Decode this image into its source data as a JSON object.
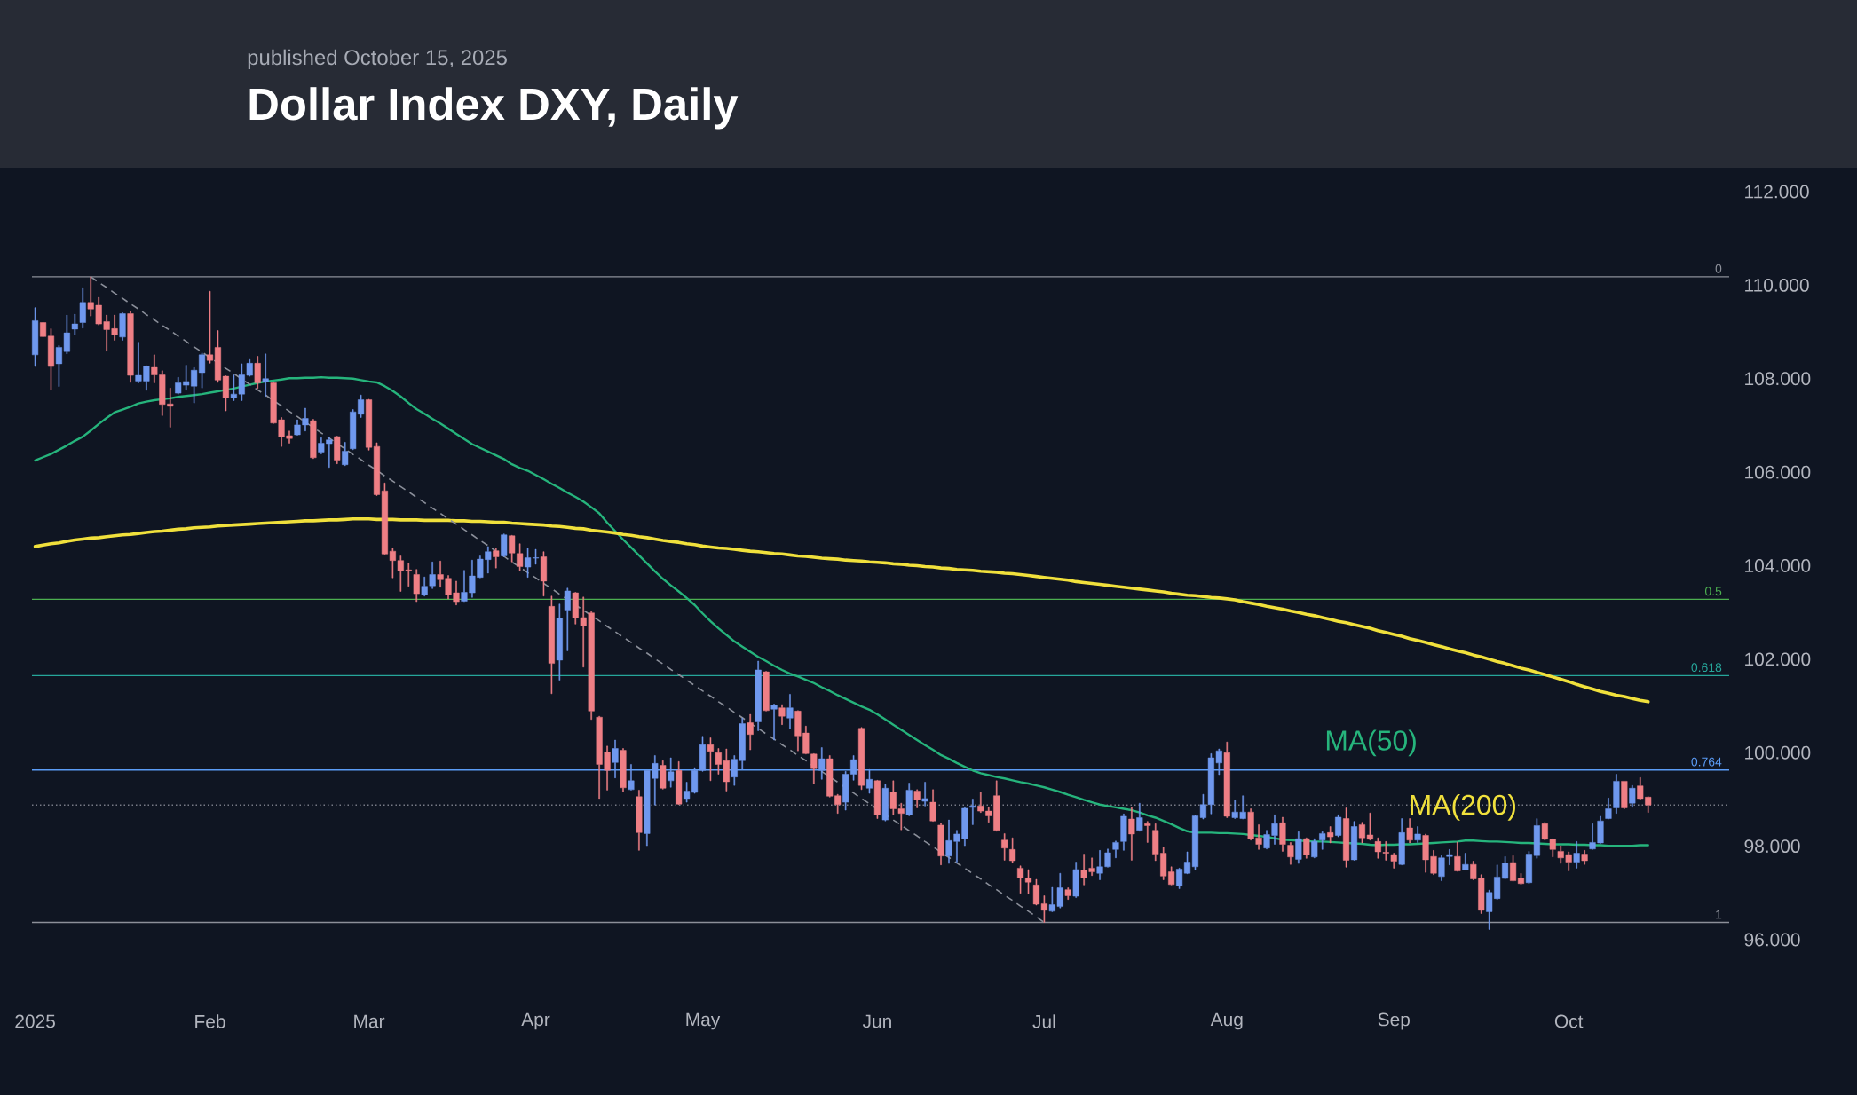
{
  "chart_data": {
    "type": "candlestick",
    "title": "Dollar Index DXY, Daily",
    "subtitle": "published October 15, 2025",
    "categories": [
      "2025",
      null,
      null,
      null,
      null,
      null,
      null,
      null,
      null,
      null,
      null,
      null,
      null,
      null,
      null,
      null,
      null,
      null,
      null,
      null,
      null,
      null,
      "Feb",
      null,
      null,
      null,
      null,
      null,
      null,
      null,
      null,
      null,
      null,
      null,
      null,
      null,
      null,
      null,
      null,
      null,
      null,
      null,
      "Mar",
      null,
      null,
      null,
      null,
      null,
      null,
      null,
      null,
      null,
      null,
      null,
      null,
      null,
      null,
      null,
      null,
      null,
      null,
      null,
      null,
      "Apr",
      null,
      null,
      null,
      null,
      null,
      null,
      null,
      null,
      null,
      null,
      null,
      null,
      null,
      null,
      null,
      null,
      null,
      null,
      null,
      null,
      "May",
      null,
      null,
      null,
      null,
      null,
      null,
      null,
      null,
      null,
      null,
      null,
      null,
      null,
      null,
      null,
      null,
      null,
      null,
      null,
      null,
      null,
      "Jun",
      null,
      null,
      null,
      null,
      null,
      null,
      null,
      null,
      null,
      null,
      null,
      null,
      null,
      null,
      null,
      null,
      null,
      null,
      null,
      null,
      "Jul",
      null,
      null,
      null,
      null,
      null,
      null,
      null,
      null,
      null,
      null,
      null,
      null,
      null,
      null,
      null,
      null,
      null,
      null,
      null,
      null,
      null,
      null,
      "Aug",
      null,
      null,
      null,
      null,
      null,
      null,
      null,
      null,
      null,
      null,
      null,
      null,
      null,
      null,
      null,
      null,
      null,
      null,
      null,
      null,
      "Sep",
      null,
      null,
      null,
      null,
      null,
      null,
      null,
      null,
      null,
      null,
      null,
      null,
      null,
      null,
      null,
      null,
      null,
      null,
      null,
      null,
      null,
      "Oct",
      null,
      null,
      null,
      null,
      null,
      null,
      null,
      null,
      null,
      null
    ],
    "ohlc": [
      [
        108.51,
        109.52,
        108.26,
        109.24
      ],
      [
        109.2,
        109.21,
        108.89,
        108.9
      ],
      [
        108.91,
        109.07,
        107.75,
        108.26
      ],
      [
        108.32,
        108.71,
        107.83,
        108.67
      ],
      [
        108.58,
        109.36,
        108.53,
        108.98
      ],
      [
        109.06,
        109.38,
        108.94,
        109.17
      ],
      [
        109.2,
        109.95,
        109.08,
        109.63
      ],
      [
        109.63,
        110.18,
        109.34,
        109.49
      ],
      [
        109.57,
        109.74,
        109.15,
        109.17
      ],
      [
        109.22,
        109.36,
        108.59,
        109.05
      ],
      [
        109.07,
        109.36,
        108.82,
        108.94
      ],
      [
        108.89,
        109.41,
        108.82,
        109.39
      ],
      [
        109.39,
        109.44,
        107.92,
        108.07
      ],
      [
        107.95,
        108.78,
        107.91,
        108.07
      ],
      [
        107.95,
        108.28,
        107.75,
        108.27
      ],
      [
        108.24,
        108.51,
        107.91,
        108.08
      ],
      [
        108.08,
        108.17,
        107.21,
        107.45
      ],
      [
        107.46,
        107.8,
        106.96,
        107.41
      ],
      [
        107.69,
        108.03,
        107.67,
        107.91
      ],
      [
        107.86,
        108.29,
        107.75,
        107.94
      ],
      [
        107.84,
        108.24,
        107.48,
        108.18
      ],
      [
        108.13,
        108.55,
        107.8,
        108.51
      ],
      [
        108.51,
        109.87,
        108.33,
        108.39
      ],
      [
        108.67,
        109.03,
        107.92,
        107.97
      ],
      [
        108.05,
        108.06,
        107.31,
        107.59
      ],
      [
        107.59,
        108.08,
        107.53,
        107.67
      ],
      [
        107.67,
        108.32,
        107.53,
        108.08
      ],
      [
        108.07,
        108.41,
        108.05,
        108.33
      ],
      [
        108.33,
        108.48,
        107.79,
        107.91
      ],
      [
        107.94,
        108.53,
        107.62,
        108.0
      ],
      [
        107.91,
        107.92,
        107.04,
        107.05
      ],
      [
        107.12,
        107.17,
        106.55,
        106.76
      ],
      [
        106.78,
        106.88,
        106.62,
        106.72
      ],
      [
        106.8,
        107.12,
        106.79,
        107.01
      ],
      [
        107.01,
        107.37,
        106.88,
        107.15
      ],
      [
        107.1,
        107.13,
        106.29,
        106.31
      ],
      [
        106.43,
        106.74,
        106.39,
        106.62
      ],
      [
        106.61,
        106.74,
        106.1,
        106.69
      ],
      [
        106.76,
        106.77,
        106.18,
        106.26
      ],
      [
        106.16,
        106.64,
        106.14,
        106.45
      ],
      [
        106.5,
        107.34,
        106.48,
        107.29
      ],
      [
        107.24,
        107.65,
        107.17,
        107.55
      ],
      [
        107.55,
        107.56,
        106.47,
        106.53
      ],
      [
        106.55,
        106.63,
        105.5,
        105.52
      ],
      [
        105.6,
        105.77,
        104.24,
        104.25
      ],
      [
        104.31,
        104.38,
        103.74,
        104.11
      ],
      [
        104.11,
        104.21,
        103.45,
        103.89
      ],
      [
        103.91,
        104.05,
        103.56,
        103.89
      ],
      [
        103.81,
        103.92,
        103.23,
        103.4
      ],
      [
        103.38,
        103.76,
        103.35,
        103.56
      ],
      [
        103.57,
        104.08,
        103.51,
        103.81
      ],
      [
        103.81,
        104.1,
        103.54,
        103.7
      ],
      [
        103.73,
        103.79,
        103.29,
        103.38
      ],
      [
        103.42,
        103.67,
        103.16,
        103.23
      ],
      [
        103.24,
        103.9,
        103.23,
        103.43
      ],
      [
        103.42,
        104.12,
        103.32,
        103.78
      ],
      [
        103.75,
        104.21,
        103.74,
        104.14
      ],
      [
        104.13,
        104.41,
        103.84,
        104.3
      ],
      [
        104.32,
        104.38,
        103.95,
        104.19
      ],
      [
        104.21,
        104.68,
        104.19,
        104.66
      ],
      [
        104.64,
        104.65,
        104.08,
        104.27
      ],
      [
        104.26,
        104.47,
        103.89,
        103.98
      ],
      [
        103.97,
        104.38,
        103.75,
        104.17
      ],
      [
        104.16,
        104.35,
        104.03,
        104.17
      ],
      [
        104.19,
        104.3,
        103.35,
        103.67
      ],
      [
        103.13,
        103.35,
        101.26,
        101.91
      ],
      [
        101.98,
        103.18,
        101.55,
        102.88
      ],
      [
        103.05,
        103.52,
        102.18,
        103.46
      ],
      [
        103.42,
        103.43,
        102.75,
        102.88
      ],
      [
        102.89,
        103.33,
        101.83,
        102.72
      ],
      [
        102.99,
        103.02,
        100.71,
        100.89
      ],
      [
        100.76,
        100.78,
        99.02,
        99.75
      ],
      [
        100.01,
        100.14,
        99.2,
        99.62
      ],
      [
        99.79,
        100.27,
        99.46,
        100.09
      ],
      [
        100.05,
        100.09,
        99.16,
        99.25
      ],
      [
        99.21,
        99.75,
        99.2,
        99.4
      ],
      [
        99.06,
        99.2,
        97.91,
        98.29
      ],
      [
        98.27,
        99.62,
        98.01,
        99.62
      ],
      [
        99.45,
        99.94,
        98.88,
        99.77
      ],
      [
        99.73,
        99.83,
        99.22,
        99.24
      ],
      [
        99.4,
        99.89,
        99.26,
        99.59
      ],
      [
        99.62,
        99.81,
        98.89,
        98.9
      ],
      [
        99.02,
        99.37,
        98.94,
        99.18
      ],
      [
        99.15,
        99.68,
        99.13,
        99.62
      ],
      [
        99.62,
        100.35,
        99.6,
        100.17
      ],
      [
        100.17,
        100.32,
        99.4,
        100.03
      ],
      [
        100.0,
        100.09,
        99.54,
        99.75
      ],
      [
        99.83,
        100.08,
        99.18,
        99.38
      ],
      [
        99.48,
        99.94,
        99.3,
        99.86
      ],
      [
        99.83,
        100.74,
        99.64,
        100.62
      ],
      [
        100.64,
        100.82,
        100.06,
        100.39
      ],
      [
        100.66,
        101.96,
        100.47,
        101.77
      ],
      [
        101.73,
        101.74,
        100.89,
        100.9
      ],
      [
        100.93,
        101.04,
        100.27,
        101.01
      ],
      [
        100.96,
        101.03,
        100.6,
        100.78
      ],
      [
        100.74,
        101.25,
        100.51,
        100.96
      ],
      [
        100.89,
        100.9,
        100.04,
        100.36
      ],
      [
        100.42,
        100.57,
        99.97,
        99.98
      ],
      [
        99.97,
        99.98,
        99.34,
        99.66
      ],
      [
        99.62,
        100.11,
        99.43,
        99.87
      ],
      [
        99.87,
        99.94,
        99.05,
        99.07
      ],
      [
        99.08,
        99.11,
        98.7,
        98.89
      ],
      [
        98.94,
        99.6,
        98.77,
        99.54
      ],
      [
        99.54,
        99.94,
        99.41,
        99.85
      ],
      [
        100.52,
        100.54,
        99.21,
        99.3
      ],
      [
        99.24,
        99.64,
        99.13,
        99.43
      ],
      [
        99.4,
        99.41,
        98.59,
        98.67
      ],
      [
        98.56,
        99.32,
        98.54,
        99.24
      ],
      [
        99.16,
        99.4,
        98.67,
        98.8
      ],
      [
        98.8,
        98.92,
        98.35,
        98.7
      ],
      [
        98.67,
        99.35,
        98.65,
        99.2
      ],
      [
        99.18,
        99.21,
        98.82,
        98.99
      ],
      [
        98.96,
        99.37,
        98.86,
        99.02
      ],
      [
        98.94,
        99.21,
        98.53,
        98.54
      ],
      [
        98.45,
        98.49,
        97.6,
        97.79
      ],
      [
        97.79,
        98.56,
        97.63,
        98.12
      ],
      [
        98.1,
        98.34,
        97.66,
        98.26
      ],
      [
        98.16,
        98.84,
        98.01,
        98.81
      ],
      [
        98.83,
        99.01,
        98.46,
        98.86
      ],
      [
        98.86,
        99.16,
        98.72,
        98.75
      ],
      [
        98.75,
        98.84,
        98.51,
        98.65
      ],
      [
        99.08,
        99.4,
        98.32,
        98.34
      ],
      [
        98.13,
        98.27,
        97.7,
        97.96
      ],
      [
        97.93,
        98.18,
        97.64,
        97.69
      ],
      [
        97.53,
        97.58,
        96.99,
        97.32
      ],
      [
        97.32,
        97.5,
        96.98,
        97.23
      ],
      [
        97.17,
        97.29,
        96.74,
        96.76
      ],
      [
        96.77,
        96.94,
        96.37,
        96.63
      ],
      [
        96.61,
        97.12,
        96.6,
        96.75
      ],
      [
        96.71,
        97.42,
        96.68,
        97.11
      ],
      [
        97.07,
        97.11,
        96.86,
        96.94
      ],
      [
        96.93,
        97.66,
        96.9,
        97.5
      ],
      [
        97.49,
        97.83,
        97.17,
        97.32
      ],
      [
        97.53,
        97.75,
        97.37,
        97.45
      ],
      [
        97.42,
        97.91,
        97.28,
        97.56
      ],
      [
        97.56,
        97.94,
        97.55,
        97.86
      ],
      [
        97.93,
        98.11,
        97.75,
        98.08
      ],
      [
        98.1,
        98.69,
        97.91,
        98.64
      ],
      [
        98.58,
        98.83,
        97.7,
        98.26
      ],
      [
        98.34,
        98.92,
        98.32,
        98.61
      ],
      [
        98.48,
        98.53,
        98.08,
        98.44
      ],
      [
        98.34,
        98.48,
        97.69,
        97.83
      ],
      [
        97.85,
        97.98,
        97.28,
        97.36
      ],
      [
        97.45,
        97.56,
        97.17,
        97.18
      ],
      [
        97.15,
        97.53,
        97.09,
        97.51
      ],
      [
        97.42,
        97.88,
        97.41,
        97.66
      ],
      [
        97.56,
        98.66,
        97.49,
        98.65
      ],
      [
        98.61,
        99.11,
        98.58,
        98.89
      ],
      [
        98.89,
        99.98,
        98.69,
        99.89
      ],
      [
        99.78,
        100.08,
        99.53,
        100.04
      ],
      [
        100.0,
        100.23,
        98.61,
        98.64
      ],
      [
        98.61,
        98.99,
        98.59,
        98.73
      ],
      [
        98.59,
        99.08,
        98.58,
        98.73
      ],
      [
        98.73,
        98.8,
        98.13,
        98.16
      ],
      [
        98.18,
        98.46,
        97.93,
        98.04
      ],
      [
        97.96,
        98.34,
        97.94,
        98.25
      ],
      [
        98.23,
        98.67,
        98.04,
        98.48
      ],
      [
        98.5,
        98.62,
        97.89,
        98.04
      ],
      [
        98.02,
        98.08,
        97.61,
        97.77
      ],
      [
        97.72,
        98.31,
        97.63,
        98.16
      ],
      [
        98.16,
        98.18,
        97.74,
        97.82
      ],
      [
        97.77,
        98.16,
        97.75,
        98.1
      ],
      [
        98.13,
        98.31,
        97.93,
        98.27
      ],
      [
        98.29,
        98.42,
        98.07,
        98.2
      ],
      [
        98.23,
        98.67,
        98.2,
        98.62
      ],
      [
        98.59,
        98.82,
        97.55,
        97.7
      ],
      [
        97.71,
        98.53,
        97.7,
        98.42
      ],
      [
        98.46,
        98.51,
        98.07,
        98.18
      ],
      [
        98.24,
        98.71,
        98.13,
        98.15
      ],
      [
        98.1,
        98.18,
        97.74,
        97.88
      ],
      [
        97.87,
        98.1,
        97.7,
        97.85
      ],
      [
        97.82,
        97.85,
        97.53,
        97.68
      ],
      [
        97.61,
        98.59,
        97.6,
        98.29
      ],
      [
        98.39,
        98.59,
        98.07,
        98.13
      ],
      [
        98.13,
        98.42,
        98.08,
        98.26
      ],
      [
        98.23,
        98.26,
        97.44,
        97.71
      ],
      [
        97.78,
        97.91,
        97.39,
        97.42
      ],
      [
        97.35,
        97.8,
        97.26,
        97.75
      ],
      [
        97.78,
        97.93,
        97.6,
        97.82
      ],
      [
        97.78,
        98.09,
        97.46,
        97.47
      ],
      [
        97.5,
        97.85,
        97.49,
        97.61
      ],
      [
        97.61,
        97.68,
        97.28,
        97.3
      ],
      [
        97.32,
        97.39,
        96.56,
        96.63
      ],
      [
        96.6,
        97.06,
        96.22,
        97.01
      ],
      [
        96.88,
        97.6,
        96.86,
        97.34
      ],
      [
        97.31,
        97.78,
        97.3,
        97.63
      ],
      [
        97.65,
        97.8,
        97.25,
        97.26
      ],
      [
        97.31,
        97.42,
        97.18,
        97.2
      ],
      [
        97.22,
        97.89,
        97.2,
        97.83
      ],
      [
        97.8,
        98.59,
        97.74,
        98.44
      ],
      [
        98.48,
        98.51,
        98.13,
        98.15
      ],
      [
        98.15,
        98.16,
        97.77,
        97.93
      ],
      [
        97.89,
        98.01,
        97.63,
        97.75
      ],
      [
        97.82,
        97.88,
        97.47,
        97.66
      ],
      [
        97.66,
        98.1,
        97.53,
        97.85
      ],
      [
        97.83,
        97.91,
        97.61,
        97.69
      ],
      [
        97.94,
        98.48,
        97.93,
        98.08
      ],
      [
        98.07,
        98.64,
        98.06,
        98.54
      ],
      [
        98.59,
        99.03,
        98.58,
        98.8
      ],
      [
        98.82,
        99.54,
        98.7,
        99.39
      ],
      [
        99.39,
        99.39,
        98.8,
        98.82
      ],
      [
        98.92,
        99.3,
        98.83,
        99.24
      ],
      [
        99.29,
        99.47,
        98.99,
        99.02
      ],
      [
        99.05,
        99.06,
        98.72,
        98.88
      ]
    ],
    "colors": [
      "#6f98ee",
      "#ef7f85",
      "#ef7f85",
      "#6f98ee",
      "#6f98ee",
      "#6f98ee",
      "#6f98ee",
      "#ef7f85",
      "#ef7f85",
      "#ef7f85",
      "#ef7f85",
      "#6f98ee",
      "#ef7f85",
      "#6f98ee",
      "#6f98ee",
      "#ef7f85",
      "#ef7f85",
      "#ef7f85",
      "#6f98ee",
      "#6f98ee",
      "#6f98ee",
      "#6f98ee",
      "#ef7f85",
      "#ef7f85",
      "#ef7f85",
      "#6f98ee",
      "#6f98ee",
      "#6f98ee",
      "#ef7f85",
      "#6f98ee",
      "#ef7f85",
      "#ef7f85",
      "#ef7f85",
      "#6f98ee",
      "#6f98ee",
      "#ef7f85",
      "#6f98ee",
      "#6f98ee",
      "#ef7f85",
      "#6f98ee",
      "#6f98ee",
      "#6f98ee",
      "#ef7f85",
      "#ef7f85",
      "#ef7f85",
      "#ef7f85",
      "#ef7f85",
      "#ef7f85",
      "#ef7f85",
      "#6f98ee",
      "#6f98ee",
      "#ef7f85",
      "#ef7f85",
      "#ef7f85",
      "#6f98ee",
      "#6f98ee",
      "#6f98ee",
      "#6f98ee",
      "#ef7f85",
      "#6f98ee",
      "#ef7f85",
      "#ef7f85",
      "#6f98ee",
      "#6f98ee",
      "#ef7f85",
      "#ef7f85",
      "#6f98ee",
      "#6f98ee",
      "#ef7f85",
      "#ef7f85",
      "#ef7f85",
      "#ef7f85",
      "#ef7f85",
      "#6f98ee",
      "#ef7f85",
      "#6f98ee",
      "#ef7f85",
      "#6f98ee",
      "#6f98ee",
      "#ef7f85",
      "#6f98ee",
      "#ef7f85",
      "#6f98ee",
      "#6f98ee",
      "#6f98ee",
      "#ef7f85",
      "#ef7f85",
      "#ef7f85",
      "#6f98ee",
      "#6f98ee",
      "#ef7f85",
      "#6f98ee",
      "#ef7f85",
      "#6f98ee",
      "#ef7f85",
      "#6f98ee",
      "#ef7f85",
      "#ef7f85",
      "#ef7f85",
      "#6f98ee",
      "#ef7f85",
      "#ef7f85",
      "#6f98ee",
      "#6f98ee",
      "#ef7f85",
      "#6f98ee",
      "#ef7f85",
      "#6f98ee",
      "#ef7f85",
      "#ef7f85",
      "#6f98ee",
      "#ef7f85",
      "#6f98ee",
      "#ef7f85",
      "#ef7f85",
      "#6f98ee",
      "#6f98ee",
      "#6f98ee",
      "#6f98ee",
      "#ef7f85",
      "#ef7f85",
      "#ef7f85",
      "#ef7f85",
      "#ef7f85",
      "#ef7f85",
      "#ef7f85",
      "#ef7f85",
      "#ef7f85",
      "#6f98ee",
      "#6f98ee",
      "#ef7f85",
      "#6f98ee",
      "#ef7f85",
      "#ef7f85",
      "#6f98ee",
      "#6f98ee",
      "#6f98ee",
      "#6f98ee",
      "#ef7f85",
      "#6f98ee",
      "#ef7f85",
      "#ef7f85",
      "#ef7f85",
      "#ef7f85",
      "#6f98ee",
      "#6f98ee",
      "#6f98ee",
      "#6f98ee",
      "#6f98ee",
      "#6f98ee",
      "#ef7f85",
      "#6f98ee",
      "#6f98ee",
      "#ef7f85",
      "#ef7f85",
      "#6f98ee",
      "#6f98ee",
      "#ef7f85",
      "#ef7f85",
      "#6f98ee",
      "#ef7f85",
      "#6f98ee",
      "#6f98ee",
      "#ef7f85",
      "#6f98ee",
      "#ef7f85",
      "#6f98ee",
      "#ef7f85",
      "#ef7f85",
      "#ef7f85",
      "#ef7f85",
      "#ef7f85",
      "#6f98ee",
      "#ef7f85",
      "#6f98ee",
      "#ef7f85",
      "#ef7f85",
      "#6f98ee",
      "#6f98ee",
      "#ef7f85",
      "#6f98ee",
      "#ef7f85",
      "#ef7f85",
      "#6f98ee",
      "#6f98ee",
      "#6f98ee",
      "#ef7f85",
      "#ef7f85",
      "#6f98ee",
      "#6f98ee",
      "#ef7f85",
      "#ef7f85",
      "#ef7f85",
      "#ef7f85",
      "#6f98ee",
      "#ef7f85",
      "#6f98ee",
      "#6f98ee",
      "#6f98ee",
      "#6f98ee",
      "#ef7f85",
      "#6f98ee",
      "#ef7f85",
      "#ef7f85"
    ],
    "series": [
      {
        "name": "MA(50)",
        "type": "line",
        "color": "#26b47c",
        "values": [
          106.25,
          106.32,
          106.39,
          106.48,
          106.57,
          106.67,
          106.76,
          106.89,
          107.03,
          107.16,
          107.28,
          107.34,
          107.4,
          107.47,
          107.51,
          107.54,
          107.56,
          107.58,
          107.61,
          107.63,
          107.65,
          107.67,
          107.7,
          107.73,
          107.76,
          107.79,
          107.83,
          107.87,
          107.91,
          107.94,
          107.96,
          107.98,
          108.01,
          108.01,
          108.02,
          108.02,
          108.03,
          108.02,
          108.02,
          108.01,
          108.0,
          107.97,
          107.94,
          107.92,
          107.84,
          107.74,
          107.62,
          107.48,
          107.35,
          107.25,
          107.14,
          107.04,
          106.93,
          106.82,
          106.71,
          106.6,
          106.52,
          106.44,
          106.36,
          106.28,
          106.17,
          106.09,
          106.03,
          105.94,
          105.85,
          105.75,
          105.66,
          105.56,
          105.47,
          105.37,
          105.25,
          105.12,
          104.92,
          104.74,
          104.56,
          104.39,
          104.22,
          104.05,
          103.88,
          103.72,
          103.58,
          103.45,
          103.31,
          103.16,
          102.98,
          102.81,
          102.66,
          102.52,
          102.38,
          102.27,
          102.16,
          102.05,
          101.96,
          101.86,
          101.77,
          101.69,
          101.63,
          101.56,
          101.49,
          101.4,
          101.32,
          101.23,
          101.15,
          101.07,
          100.99,
          100.92,
          100.82,
          100.71,
          100.6,
          100.49,
          100.38,
          100.27,
          100.16,
          100.06,
          99.95,
          99.87,
          99.78,
          99.7,
          99.62,
          99.56,
          99.52,
          99.48,
          99.45,
          99.41,
          99.37,
          99.34,
          99.3,
          99.26,
          99.21,
          99.16,
          99.1,
          99.05,
          98.99,
          98.94,
          98.89,
          98.86,
          98.83,
          98.8,
          98.77,
          98.72,
          98.66,
          98.61,
          98.54,
          98.47,
          98.39,
          98.32,
          98.29,
          98.29,
          98.29,
          98.28,
          98.28,
          98.27,
          98.26,
          98.24,
          98.22,
          98.2,
          98.17,
          98.14,
          98.13,
          98.12,
          98.11,
          98.1,
          98.1,
          98.09,
          98.08,
          98.07,
          98.06,
          98.05,
          98.03,
          98.02,
          98.03,
          98.03,
          98.04,
          98.04,
          98.05,
          98.06,
          98.07,
          98.08,
          98.09,
          98.1,
          98.12,
          98.12,
          98.11,
          98.1,
          98.1,
          98.09,
          98.08,
          98.07,
          98.07,
          98.06,
          98.05,
          98.04,
          98.04,
          98.04,
          98.03,
          98.03,
          98.02,
          98.02,
          98.01,
          98.01,
          98.01,
          98.01,
          98.02,
          98.02
        ]
      },
      {
        "name": "MA(200)",
        "type": "line",
        "color": "#f0e03c",
        "values": [
          104.41,
          104.44,
          104.47,
          104.49,
          104.52,
          104.55,
          104.57,
          104.59,
          104.6,
          104.62,
          104.64,
          104.66,
          104.67,
          104.69,
          104.71,
          104.73,
          104.74,
          104.76,
          104.78,
          104.79,
          104.81,
          104.82,
          104.83,
          104.85,
          104.86,
          104.87,
          104.88,
          104.89,
          104.9,
          104.91,
          104.92,
          104.93,
          104.94,
          104.95,
          104.96,
          104.96,
          104.97,
          104.98,
          104.98,
          104.99,
          105.0,
          105.0,
          105.0,
          104.99,
          104.99,
          104.99,
          104.98,
          104.98,
          104.98,
          104.97,
          104.97,
          104.97,
          104.97,
          104.96,
          104.96,
          104.95,
          104.95,
          104.94,
          104.93,
          104.93,
          104.91,
          104.9,
          104.89,
          104.88,
          104.87,
          104.85,
          104.84,
          104.82,
          104.8,
          104.79,
          104.76,
          104.74,
          104.72,
          104.7,
          104.67,
          104.65,
          104.62,
          104.6,
          104.57,
          104.54,
          104.52,
          104.5,
          104.47,
          104.45,
          104.42,
          104.4,
          104.38,
          104.37,
          104.35,
          104.33,
          104.31,
          104.3,
          104.28,
          104.26,
          104.25,
          104.23,
          104.21,
          104.2,
          104.18,
          104.16,
          104.15,
          104.14,
          104.12,
          104.11,
          104.1,
          104.08,
          104.07,
          104.06,
          104.04,
          104.03,
          104.01,
          104.0,
          103.98,
          103.97,
          103.95,
          103.94,
          103.92,
          103.91,
          103.9,
          103.88,
          103.87,
          103.86,
          103.84,
          103.83,
          103.81,
          103.79,
          103.77,
          103.75,
          103.73,
          103.71,
          103.69,
          103.66,
          103.64,
          103.62,
          103.6,
          103.58,
          103.56,
          103.54,
          103.52,
          103.5,
          103.48,
          103.46,
          103.44,
          103.41,
          103.39,
          103.37,
          103.36,
          103.34,
          103.32,
          103.31,
          103.29,
          103.27,
          103.23,
          103.2,
          103.17,
          103.13,
          103.1,
          103.07,
          103.03,
          103.0,
          102.96,
          102.93,
          102.89,
          102.85,
          102.81,
          102.78,
          102.74,
          102.7,
          102.66,
          102.61,
          102.57,
          102.53,
          102.49,
          102.44,
          102.4,
          102.36,
          102.31,
          102.27,
          102.22,
          102.18,
          102.14,
          102.09,
          102.05,
          102.0,
          101.95,
          101.91,
          101.86,
          101.81,
          101.77,
          101.72,
          101.67,
          101.62,
          101.57,
          101.52,
          101.46,
          101.41,
          101.36,
          101.31,
          101.27,
          101.23,
          101.2,
          101.16,
          101.12,
          101.09
        ]
      },
      {
        "type": "line",
        "color": "#8a8e99",
        "line_style": "dashed",
        "values": [
          null,
          null,
          null,
          null,
          null,
          null,
          null,
          110.18,
          110.06,
          109.95,
          109.83,
          109.72,
          109.6,
          109.49,
          109.37,
          109.26,
          109.14,
          109.03,
          108.91,
          108.8,
          108.68,
          108.57,
          108.45,
          108.34,
          108.22,
          108.11,
          107.99,
          107.88,
          107.76,
          107.65,
          107.53,
          107.42,
          107.3,
          107.19,
          107.07,
          106.96,
          106.84,
          106.73,
          106.61,
          106.5,
          106.38,
          106.27,
          106.15,
          106.04,
          105.92,
          105.81,
          105.69,
          105.58,
          105.46,
          105.35,
          105.23,
          105.12,
          105.0,
          104.89,
          104.77,
          104.66,
          104.54,
          104.43,
          104.31,
          104.2,
          104.08,
          103.97,
          103.85,
          103.74,
          103.62,
          103.51,
          103.39,
          103.28,
          103.16,
          103.05,
          102.93,
          102.82,
          102.7,
          102.59,
          102.47,
          102.36,
          102.24,
          102.13,
          102.01,
          101.9,
          101.78,
          101.67,
          101.55,
          101.44,
          101.32,
          101.21,
          101.09,
          100.98,
          100.86,
          100.75,
          100.63,
          100.52,
          100.4,
          100.29,
          100.17,
          100.06,
          99.94,
          99.83,
          99.71,
          99.6,
          99.48,
          99.37,
          99.25,
          99.14,
          99.02,
          98.91,
          98.79,
          98.68,
          98.56,
          98.45,
          98.33,
          98.22,
          98.1,
          97.99,
          97.87,
          97.76,
          97.64,
          97.53,
          97.41,
          97.3,
          97.18,
          97.07,
          96.95,
          96.84,
          96.72,
          96.61,
          96.49,
          96.37,
          null,
          null,
          null,
          null,
          null,
          null,
          null,
          null,
          null,
          null,
          null,
          null,
          null,
          null,
          null,
          null,
          null,
          null,
          null,
          null,
          null,
          null,
          null,
          null,
          null,
          null,
          null,
          null,
          null,
          null,
          null,
          null,
          null,
          null,
          null,
          null,
          null,
          null,
          null,
          null,
          null,
          null,
          null,
          null,
          null,
          null,
          null,
          null,
          null,
          null,
          null,
          null,
          null,
          null,
          null,
          null,
          null,
          null,
          null,
          null,
          null,
          null,
          null,
          null,
          null,
          null,
          null,
          null,
          null,
          null,
          null,
          null,
          null,
          null,
          null,
          null
        ]
      }
    ],
    "ref_lines": [
      {
        "axis": "y",
        "value": 110.18,
        "color": "#8c8f99"
      },
      {
        "axis": "y",
        "value": 103.28,
        "color": "#4caf50"
      },
      {
        "axis": "y",
        "value": 101.65,
        "color": "#26a69a"
      },
      {
        "axis": "y",
        "value": 99.63,
        "color": "#5b9cf6"
      },
      {
        "axis": "y",
        "value": 96.37,
        "color": "#8c8f99"
      },
      {
        "axis": "y",
        "value": 98.88,
        "color": "#787b86",
        "line_style": "dotted"
      }
    ],
    "annotations": [
      {
        "text": "0",
        "y": 110.18
      },
      {
        "text": "0.5",
        "y": 103.28
      },
      {
        "text": "0.618",
        "y": 101.65
      },
      {
        "text": "0.764",
        "y": 99.63
      },
      {
        "text": "1",
        "y": 96.37
      }
    ],
    "ylim": [
      96,
      112
    ],
    "yticks": [
      {
        "value": 96,
        "label": "96.000"
      },
      {
        "value": 98,
        "label": "98.000"
      },
      {
        "value": 100,
        "label": "100.000"
      },
      {
        "value": 102,
        "label": "102.000"
      },
      {
        "value": 104,
        "label": "104.000"
      },
      {
        "value": 106,
        "label": "106.000"
      },
      {
        "value": 108,
        "label": "108.000"
      },
      {
        "value": 110,
        "label": "110.000"
      },
      {
        "value": 112,
        "label": "112.000"
      }
    ]
  }
}
